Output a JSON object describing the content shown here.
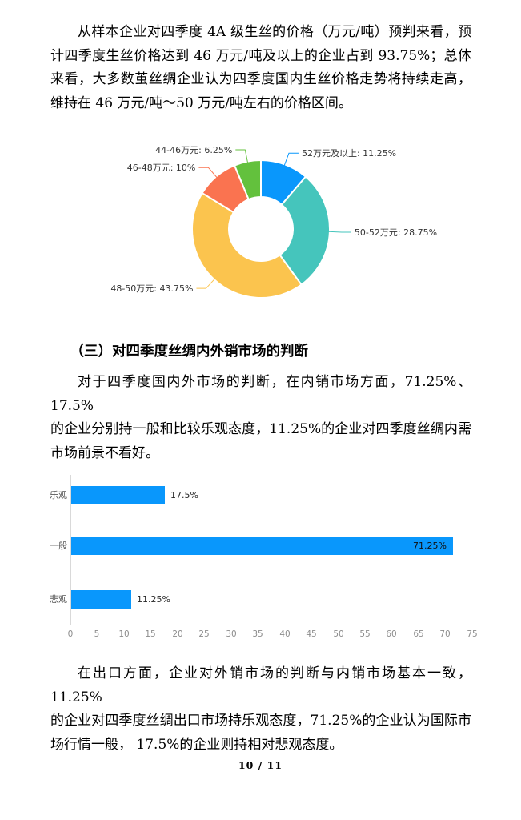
{
  "page": {
    "footer": "10 / 11"
  },
  "content": {
    "paragraph1": {
      "lines": [
        "从样本企业对四季度 4A 级生丝的价格（万元/吨）预判来看，预",
        "计四季度生丝价格达到 46 万元/吨及以上的企业占到 93.75%；总体",
        "来看，大多数茧丝绸企业认为四季度国内生丝价格走势将持续走高，",
        "维持在 46 万元/吨～50 万元/吨左右的价格区间。"
      ]
    },
    "heading": "（三）对四季度丝绸内外销市场的判断",
    "paragraph2": {
      "lines": [
        "对于四季度国内外市场的判断，在内销市场方面，71.25%、17.5%",
        "的企业分别持一般和比较乐观态度，11.25%的企业对四季度丝绸内需",
        "市场前景不看好。"
      ]
    },
    "paragraph3": {
      "lines": [
        "在出口方面，企业对外销市场的判断与内销市场基本一致，11.25%",
        "的企业对四季度丝绸出口市场持乐观态度，71.25%的企业认为国际市",
        "场行情一般， 17.5%的企业则持相对悲观态度。"
      ]
    }
  },
  "chart_data": [
    {
      "type": "pie",
      "donut": true,
      "start_angle_deg": 0,
      "direction": "clockwise",
      "title": "",
      "slices": [
        {
          "label": "52万元及以上",
          "value": 11.25,
          "display": "52万元及以上: 11.25%",
          "color": "#0997fc"
        },
        {
          "label": "50-52万元",
          "value": 28.75,
          "display": "50-52万元: 28.75%",
          "color": "#45c5bc"
        },
        {
          "label": "48-50万元",
          "value": 43.75,
          "display": "48-50万元: 43.75%",
          "color": "#fbc44e"
        },
        {
          "label": "46-48万元",
          "value": 10,
          "display": "46-48万元: 10%",
          "color": "#fa7350"
        },
        {
          "label": "44-46万元",
          "value": 6.25,
          "display": "44-46万元: 6.25%",
          "color": "#63c13d"
        }
      ]
    },
    {
      "type": "bar",
      "orientation": "horizontal",
      "title": "",
      "categories": [
        "乐观",
        "一般",
        "悲观"
      ],
      "values": [
        17.5,
        71.25,
        11.25
      ],
      "value_labels": [
        "17.5%",
        "71.25%",
        "11.25%"
      ],
      "xlim": [
        0,
        75
      ],
      "x_tick_step": 5,
      "grid": false,
      "bar_color": "#0997fc",
      "axis_color": "#d9d9d9"
    }
  ]
}
